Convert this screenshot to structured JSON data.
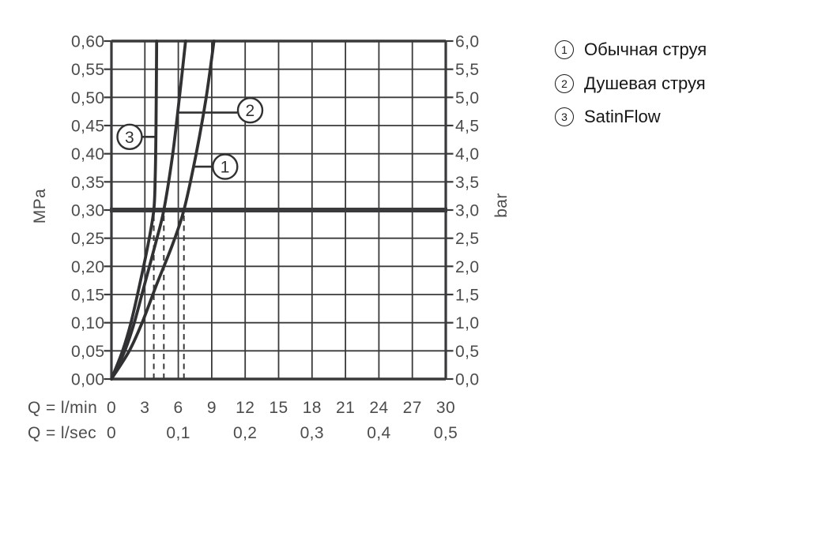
{
  "page": {
    "background": "#ffffff"
  },
  "chart_data": {
    "type": "line",
    "title": "",
    "description": "Flow-rate vs pressure diagram (aquagram) with three spray-mode curves",
    "x_axis": {
      "unit_lmin_label": "Q = l/min",
      "unit_lsec_label": "Q = l/sec",
      "range_lmin": [
        0,
        30
      ],
      "grid_step_lmin": 3,
      "tick_labels_lmin": [
        "0",
        "3",
        "6",
        "9",
        "12",
        "15",
        "18",
        "21",
        "24",
        "27",
        "30"
      ],
      "ticks_lsec": [
        {
          "q_lmin": 0,
          "label": "0"
        },
        {
          "q_lmin": 6,
          "label": "0,1"
        },
        {
          "q_lmin": 12,
          "label": "0,2"
        },
        {
          "q_lmin": 18,
          "label": "0,3"
        },
        {
          "q_lmin": 24,
          "label": "0,4"
        },
        {
          "q_lmin": 30,
          "label": "0,5"
        }
      ]
    },
    "y_axis_left": {
      "unit_label": "MPa",
      "range_mpa": [
        0,
        0.6
      ],
      "tick_labels": [
        "0,60",
        "0,55",
        "0,50",
        "0,45",
        "0,40",
        "0,35",
        "0,30",
        "0,25",
        "0,20",
        "0,15",
        "0,10",
        "0,05",
        "0,00"
      ]
    },
    "y_axis_right": {
      "unit_label": "bar",
      "range_bar": [
        0,
        6
      ],
      "grid_step_bar": 0.5,
      "tick_labels": [
        "6,0",
        "5,5",
        "5,0",
        "4,5",
        "4,0",
        "3,5",
        "3,0",
        "2,5",
        "2,0",
        "1,5",
        "1,0",
        "0,5",
        "0,0"
      ]
    },
    "reference_line_bar": 3.0,
    "series": [
      {
        "id": "1",
        "name": "Обычная струя",
        "flow_at_3bar_lmin": 6.5,
        "points_bar_lmin": [
          [
            0,
            0
          ],
          [
            0.5,
            1.6
          ],
          [
            1,
            2.75
          ],
          [
            1.7,
            4.1
          ],
          [
            2.4,
            5.5
          ],
          [
            3,
            6.5
          ],
          [
            4,
            7.6
          ],
          [
            5,
            8.5
          ],
          [
            6,
            9.2
          ]
        ]
      },
      {
        "id": "2",
        "name": "Душевая струя",
        "flow_at_3bar_lmin": 4.7,
        "points_bar_lmin": [
          [
            0,
            0
          ],
          [
            0.5,
            1.2
          ],
          [
            1,
            2.05
          ],
          [
            1.7,
            3.0
          ],
          [
            2.4,
            3.95
          ],
          [
            3,
            4.7
          ],
          [
            4,
            5.5
          ],
          [
            5,
            6.1
          ],
          [
            6,
            6.65
          ]
        ]
      },
      {
        "id": "3",
        "name": "SatinFlow",
        "flow_at_3bar_lmin": 3.8,
        "points_bar_lmin": [
          [
            0,
            0
          ],
          [
            0.5,
            1.0
          ],
          [
            1,
            1.75
          ],
          [
            1.7,
            2.56
          ],
          [
            2.4,
            3.3
          ],
          [
            3,
            3.8
          ],
          [
            3.6,
            3.93
          ],
          [
            4.5,
            4.0
          ],
          [
            6,
            4.06
          ]
        ]
      }
    ],
    "dashed_drop_lines": {
      "q_lmin": [
        3.8,
        4.7,
        6.5
      ],
      "from_bar": 0,
      "to_bar": 2.93
    },
    "callouts": [
      {
        "num": "3",
        "circle_q": 1.63,
        "circle_bar": 4.3,
        "line_bar": 4.3,
        "line_from_q": 2.73,
        "line_to_q": 3.95
      },
      {
        "num": "1",
        "circle_q": 10.2,
        "circle_bar": 3.77,
        "line_bar": 3.77,
        "line_from_q": 7.3,
        "line_to_q": 9.1
      },
      {
        "num": "2",
        "circle_q": 12.45,
        "circle_bar": 4.77,
        "line_bar": 4.73,
        "line_from_q": 5.92,
        "line_to_q": 11.3
      }
    ],
    "colors": {
      "ink": "#3a3a3c",
      "curve": "#313134",
      "tick_text": "#4c4c4e",
      "legend_text": "#161616",
      "background": "#ffffff"
    }
  },
  "legend": {
    "items": [
      {
        "num": "1",
        "label": "Обычная струя"
      },
      {
        "num": "2",
        "label": "Душевая струя"
      },
      {
        "num": "3",
        "label": "SatinFlow"
      }
    ]
  }
}
